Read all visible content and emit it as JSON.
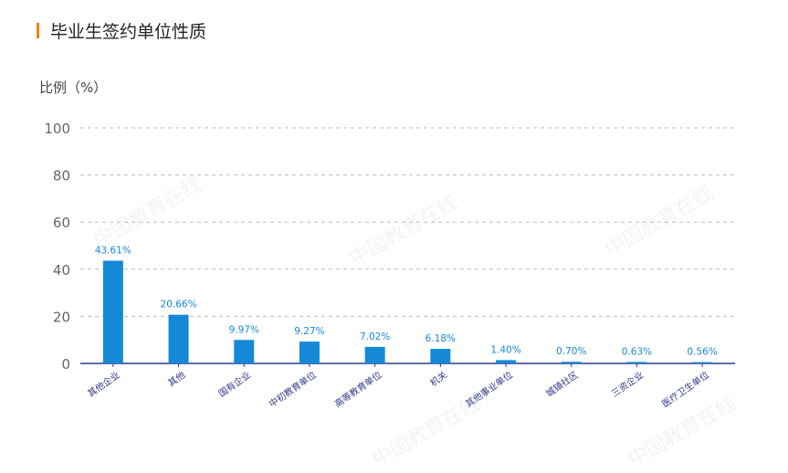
{
  "title": "毕业生签约单位性质",
  "ylabel": "比例（%）",
  "colors": {
    "bar": "#1589d8",
    "accent": "#f08300",
    "label": "#1589d8",
    "axis": "#2f3a8c",
    "grid": "#bbbbbb",
    "tick": "#666666",
    "category_label": "#2f3a8c"
  },
  "chart_data": {
    "type": "bar",
    "title": "毕业生签约单位性质",
    "ylabel": "比例（%）",
    "xlabel": "",
    "ylim": [
      0,
      100
    ],
    "yticks": [
      "0",
      "20",
      "40",
      "60",
      "80",
      "100"
    ],
    "ytick_values": [
      0,
      20,
      40,
      60,
      80,
      100
    ],
    "grid": true,
    "categories": [
      "其他企业",
      "其他",
      "国有企业",
      "中初教育单位",
      "高等教育单位",
      "机关",
      "其他事业单位",
      "城镇社区",
      "三资企业",
      "医疗卫生单位"
    ],
    "values": [
      43.61,
      20.66,
      9.97,
      9.27,
      7.02,
      6.18,
      1.4,
      0.7,
      0.63,
      0.56
    ],
    "value_labels": [
      "43.61%",
      "20.66%",
      "9.97%",
      "9.27%",
      "7.02%",
      "6.18%",
      "1.40%",
      "0.70%",
      "0.63%",
      "0.56%"
    ]
  },
  "watermark": {
    "text": "中国教育在线",
    "url": "www.eol.cn",
    "logo": "eol"
  }
}
